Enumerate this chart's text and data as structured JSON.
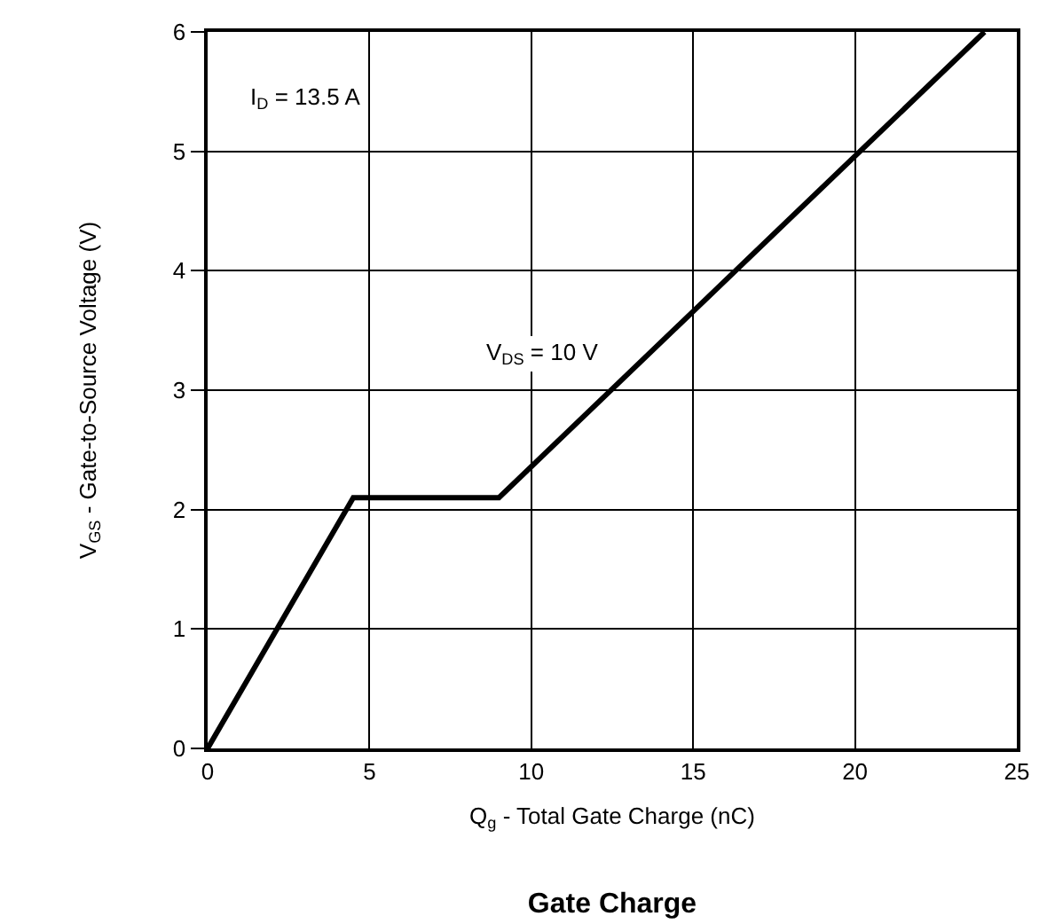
{
  "chart_data": {
    "type": "line",
    "title": "Gate Charge",
    "xlabel": "Q$_{g}$ - Total Gate Charge (nC)",
    "ylabel": "V$_{GS}$ - Gate-to-Source Voltage (V)",
    "annotations": [
      "I$_{D}$ = 13.5 A",
      "V$_{DS}$ = 10 V"
    ],
    "x": [
      0,
      4.5,
      9,
      24
    ],
    "series": [
      {
        "color": "#000000",
        "values": [
          0,
          2.1,
          2.1,
          6
        ]
      }
    ],
    "xlim": [
      0,
      25
    ],
    "xticks": [
      0,
      5,
      10,
      15,
      20,
      25
    ],
    "ylim": [
      0,
      6
    ],
    "yticks": [
      0,
      1,
      2,
      3,
      4,
      5,
      6
    ],
    "grid": true,
    "marker": "none",
    "line_style": "solid"
  }
}
